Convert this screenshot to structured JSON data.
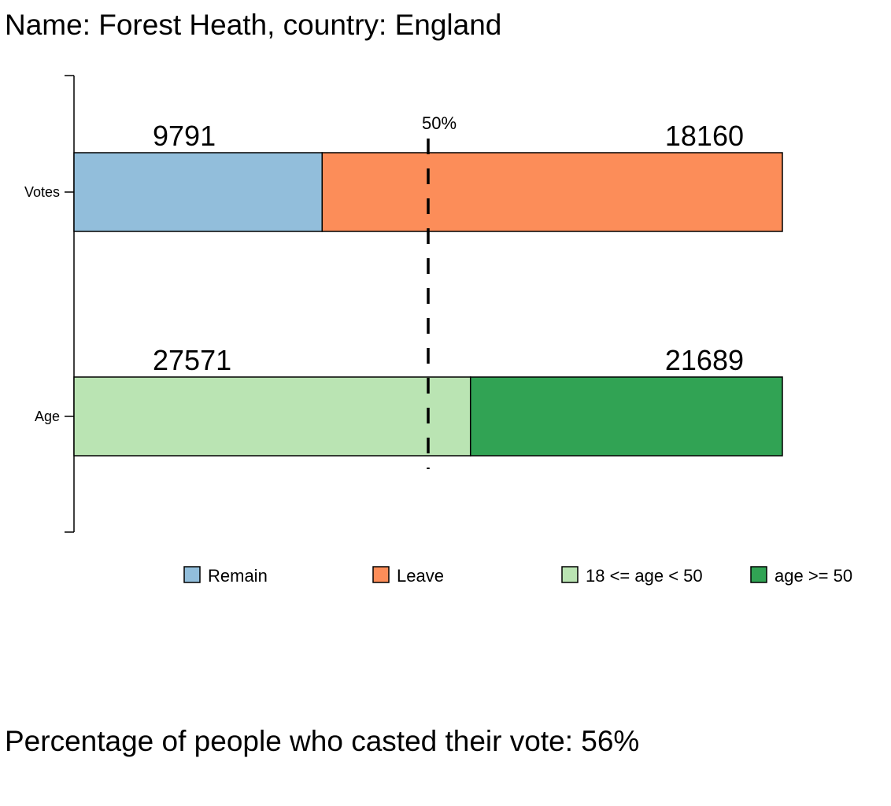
{
  "title": "Name: Forest Heath, country: England",
  "footer": {
    "turnout_text": "Percentage of people who casted their vote: 56%"
  },
  "chart_data": {
    "type": "bar",
    "orientation": "horizontal",
    "stacked": true,
    "normalized": true,
    "categories": [
      "Votes",
      "Age"
    ],
    "bars": [
      {
        "category": "Votes",
        "segments": [
          {
            "name": "Remain",
            "value": 9791,
            "color": "#92bedb"
          },
          {
            "name": "Leave",
            "value": 18160,
            "color": "#fc8d59"
          }
        ]
      },
      {
        "category": "Age",
        "segments": [
          {
            "name": "18 <= age < 50",
            "value": 27571,
            "color": "#bae4b3"
          },
          {
            "name": "age >= 50",
            "value": 21689,
            "color": "#31a354"
          }
        ]
      }
    ],
    "reference_line": {
      "label": "50%",
      "value": 0.5,
      "style": "dashed"
    },
    "legend": {
      "placement": "bottom",
      "items": [
        {
          "label": "Remain",
          "color": "#92bedb"
        },
        {
          "label": "Leave",
          "color": "#fc8d59"
        },
        {
          "label": "18 <= age < 50",
          "color": "#bae4b3"
        },
        {
          "label": "age >= 50",
          "color": "#31a354"
        }
      ]
    },
    "grid": false
  }
}
